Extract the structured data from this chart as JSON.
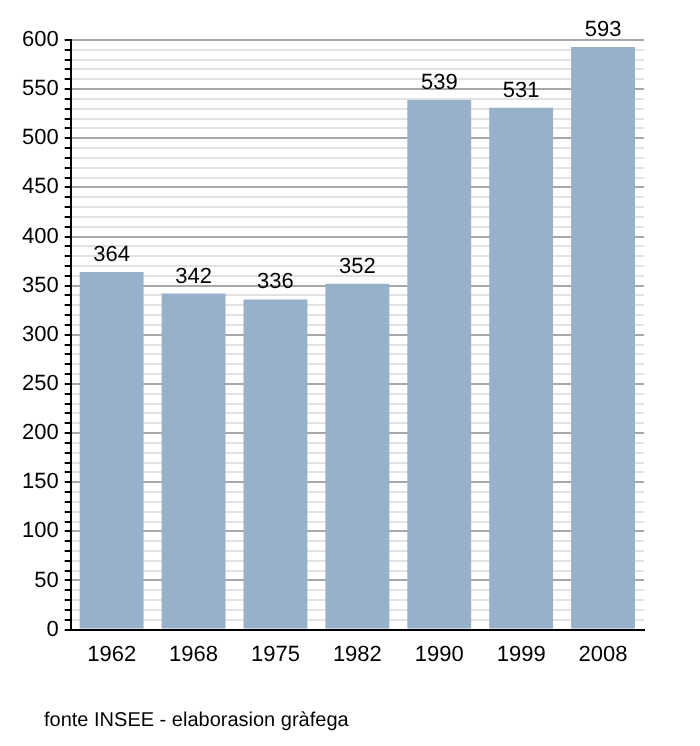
{
  "chart_data": {
    "type": "bar",
    "categories": [
      "1962",
      "1968",
      "1975",
      "1982",
      "1990",
      "1999",
      "2008"
    ],
    "values": [
      364,
      342,
      336,
      352,
      539,
      531,
      593
    ],
    "color": "#97b1cb",
    "data_labels": true,
    "grid": "y",
    "legend": false,
    "ylim": [
      0,
      600
    ],
    "yticks": [
      0,
      {
        "value": 10,
        "label": null
      },
      {
        "value": 20,
        "label": null
      },
      {
        "value": 30,
        "label": null
      },
      {
        "value": 40,
        "label": null
      },
      50,
      {
        "value": 60,
        "label": null
      },
      {
        "value": 70,
        "label": null
      },
      {
        "value": 80,
        "label": null
      },
      {
        "value": 90,
        "label": null
      },
      100,
      {
        "value": 110,
        "label": null
      },
      {
        "value": 120,
        "label": null
      },
      {
        "value": 130,
        "label": null
      },
      {
        "value": 140,
        "label": null
      },
      150,
      {
        "value": 160,
        "label": null
      },
      {
        "value": 170,
        "label": null
      },
      {
        "value": 180,
        "label": null
      },
      {
        "value": 190,
        "label": null
      },
      200,
      {
        "value": 210,
        "label": null
      },
      {
        "value": 220,
        "label": null
      },
      {
        "value": 230,
        "label": null
      },
      {
        "value": 240,
        "label": null
      },
      250,
      {
        "value": 260,
        "label": null
      },
      {
        "value": 270,
        "label": null
      },
      {
        "value": 280,
        "label": null
      },
      {
        "value": 290,
        "label": null
      },
      300,
      {
        "value": 310,
        "label": null
      },
      {
        "value": 320,
        "label": null
      },
      {
        "value": 330,
        "label": null
      },
      {
        "value": 340,
        "label": null
      },
      350,
      {
        "value": 360,
        "label": null
      },
      {
        "value": 370,
        "label": null
      },
      {
        "value": 380,
        "label": null
      },
      {
        "value": 390,
        "label": null
      },
      400,
      {
        "value": 410,
        "label": null
      },
      {
        "value": 420,
        "label": null
      },
      {
        "value": 430,
        "label": null
      },
      {
        "value": 440,
        "label": null
      },
      450,
      {
        "value": 460,
        "label": null
      },
      {
        "value": 470,
        "label": null
      },
      {
        "value": 480,
        "label": null
      },
      {
        "value": 490,
        "label": null
      },
      500,
      {
        "value": 510,
        "label": null
      },
      {
        "value": 520,
        "label": null
      },
      {
        "value": 530,
        "label": null
      },
      {
        "value": 540,
        "label": null
      },
      550,
      {
        "value": 560,
        "label": null
      },
      {
        "value": 570,
        "label": null
      },
      {
        "value": 580,
        "label": null
      },
      {
        "value": 590,
        "label": null
      },
      600
    ],
    "annotations": [
      "fonte INSEE - elaborasion gràfega"
    ]
  }
}
